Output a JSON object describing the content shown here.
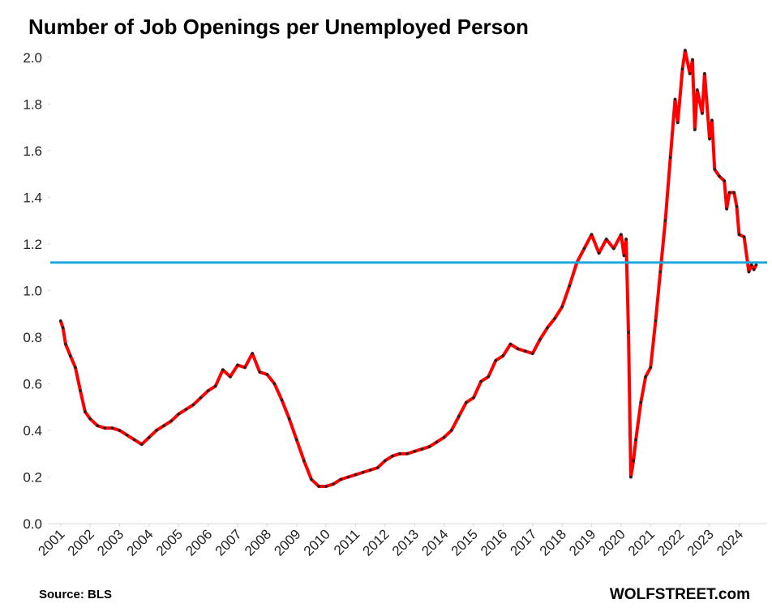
{
  "chart_data": {
    "type": "line",
    "title": "Number of Job Openings per Unemployed Person",
    "source": "Source: BLS",
    "brand": "WOLFSTREET.com",
    "x": [
      2001.0,
      2001.08,
      2001.17,
      2001.33,
      2001.5,
      2001.67,
      2001.83,
      2002.0,
      2002.25,
      2002.5,
      2002.75,
      2003.0,
      2003.25,
      2003.5,
      2003.75,
      2004.0,
      2004.25,
      2004.5,
      2004.75,
      2005.0,
      2005.25,
      2005.5,
      2005.75,
      2006.0,
      2006.25,
      2006.5,
      2006.75,
      2007.0,
      2007.25,
      2007.5,
      2007.75,
      2008.0,
      2008.25,
      2008.5,
      2008.75,
      2009.0,
      2009.25,
      2009.5,
      2009.75,
      2010.0,
      2010.25,
      2010.5,
      2010.75,
      2011.0,
      2011.25,
      2011.5,
      2011.75,
      2012.0,
      2012.25,
      2012.5,
      2012.75,
      2013.0,
      2013.25,
      2013.5,
      2013.75,
      2014.0,
      2014.25,
      2014.5,
      2014.75,
      2015.0,
      2015.25,
      2015.5,
      2015.75,
      2016.0,
      2016.25,
      2016.5,
      2016.75,
      2017.0,
      2017.25,
      2017.5,
      2017.75,
      2018.0,
      2018.25,
      2018.5,
      2018.75,
      2019.0,
      2019.25,
      2019.5,
      2019.75,
      2020.0,
      2020.1,
      2020.17,
      2020.25,
      2020.33,
      2020.42,
      2020.5,
      2020.67,
      2020.83,
      2021.0,
      2021.17,
      2021.33,
      2021.5,
      2021.67,
      2021.83,
      2021.92,
      2022.08,
      2022.17,
      2022.33,
      2022.42,
      2022.5,
      2022.58,
      2022.75,
      2022.83,
      2023.0,
      2023.08,
      2023.17,
      2023.33,
      2023.5,
      2023.58,
      2023.67,
      2023.83,
      2023.92,
      2024.0,
      2024.17,
      2024.33,
      2024.42,
      2024.5,
      2024.58
    ],
    "series": [
      {
        "name": "Job openings per unemployed person",
        "color": "#ff0000",
        "marker_color": "#222222",
        "values": [
          0.87,
          0.84,
          0.77,
          0.72,
          0.67,
          0.57,
          0.48,
          0.45,
          0.42,
          0.41,
          0.41,
          0.4,
          0.38,
          0.36,
          0.34,
          0.37,
          0.4,
          0.42,
          0.44,
          0.47,
          0.49,
          0.51,
          0.54,
          0.57,
          0.59,
          0.66,
          0.63,
          0.68,
          0.67,
          0.73,
          0.65,
          0.64,
          0.6,
          0.53,
          0.45,
          0.36,
          0.27,
          0.19,
          0.16,
          0.16,
          0.17,
          0.19,
          0.2,
          0.21,
          0.22,
          0.23,
          0.24,
          0.27,
          0.29,
          0.3,
          0.3,
          0.31,
          0.32,
          0.33,
          0.35,
          0.37,
          0.4,
          0.46,
          0.52,
          0.54,
          0.61,
          0.63,
          0.7,
          0.72,
          0.77,
          0.75,
          0.74,
          0.73,
          0.79,
          0.84,
          0.88,
          0.93,
          1.02,
          1.12,
          1.18,
          1.24,
          1.16,
          1.22,
          1.18,
          1.24,
          1.15,
          1.22,
          0.82,
          0.2,
          0.27,
          0.36,
          0.52,
          0.63,
          0.67,
          0.87,
          1.08,
          1.3,
          1.57,
          1.82,
          1.72,
          1.95,
          2.03,
          1.93,
          1.99,
          1.69,
          1.86,
          1.76,
          1.93,
          1.65,
          1.73,
          1.52,
          1.49,
          1.47,
          1.35,
          1.42,
          1.42,
          1.36,
          1.24,
          1.23,
          1.08,
          1.11,
          1.09,
          1.11
        ]
      }
    ],
    "reference_line": {
      "value": 1.12,
      "color": "#1ea7dc"
    },
    "xlim": [
      2000.65,
      2024.95
    ],
    "xticks": [
      2001,
      2002,
      2003,
      2004,
      2005,
      2006,
      2007,
      2008,
      2009,
      2010,
      2011,
      2012,
      2013,
      2014,
      2015,
      2016,
      2017,
      2018,
      2019,
      2020,
      2021,
      2022,
      2023,
      2024
    ],
    "ylim": [
      0,
      2.1
    ],
    "yticks": [
      {
        "value": 0,
        "label": "0.0"
      },
      0.2,
      0.4,
      0.6,
      0.8,
      {
        "value": 1,
        "label": "1.0"
      },
      1.2,
      1.4,
      1.6,
      1.8,
      {
        "value": 2,
        "label": "2.0"
      }
    ],
    "grid": false
  }
}
